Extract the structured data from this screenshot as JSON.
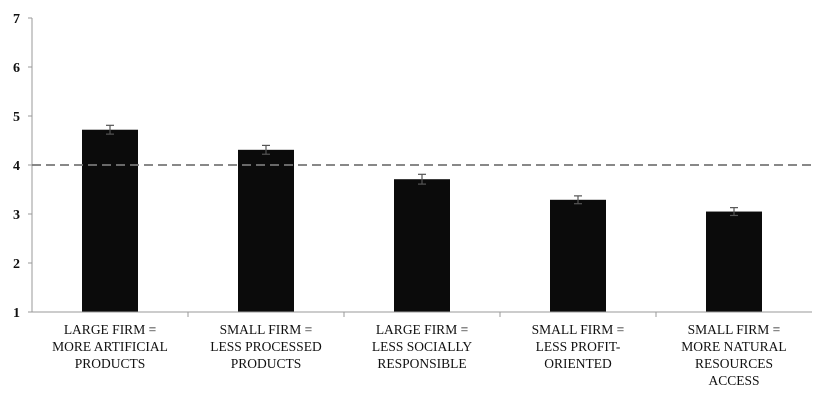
{
  "chart_data": {
    "type": "bar",
    "categories": [
      [
        "LARGE FIRM =",
        "MORE ARTIFICIAL",
        "PRODUCTS"
      ],
      [
        "SMALL FIRM =",
        "LESS PROCESSED",
        "PRODUCTS"
      ],
      [
        "LARGE FIRM =",
        "LESS SOCIALLY",
        "RESPONSIBLE"
      ],
      [
        "SMALL FIRM =",
        "LESS PROFIT-",
        "ORIENTED"
      ],
      [
        "SMALL FIRM =",
        "MORE NATURAL",
        "RESOURCES",
        "ACCESS"
      ]
    ],
    "values": [
      4.72,
      4.31,
      3.71,
      3.29,
      3.05
    ],
    "errors": [
      0.09,
      0.09,
      0.1,
      0.08,
      0.08
    ],
    "ylim": [
      1,
      7
    ],
    "yticks": [
      "1",
      "2",
      "3",
      "4",
      "5",
      "6",
      "7"
    ],
    "reference_line": 4,
    "title": "",
    "xlabel": "",
    "ylabel": "",
    "grid": false,
    "colors": {
      "bar": "#0b0b0b",
      "reference_line": "#777777",
      "axis": "#999999",
      "text": "#111111"
    }
  }
}
